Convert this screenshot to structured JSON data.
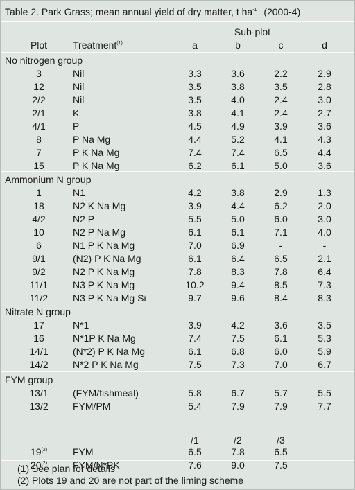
{
  "title": {
    "main": "Table 2. Park Grass; mean annual yield of dry matter, t ha",
    "sup": "-1",
    "years": "(2000-4)"
  },
  "header": {
    "subplot": "Sub-plot",
    "plot": "Plot",
    "treatment": "Treatment",
    "treatment_note": "(1)",
    "cols": [
      "a",
      "b",
      "c",
      "d"
    ]
  },
  "groups": [
    {
      "name": "No nitrogen group",
      "rows": [
        {
          "plot": "3",
          "treatment": "Nil",
          "values": [
            "3.3",
            "3.6",
            "2.2",
            "2.9"
          ]
        },
        {
          "plot": "12",
          "treatment": "Nil",
          "values": [
            "3.5",
            "3.8",
            "3.5",
            "2.8"
          ]
        },
        {
          "plot": "2/2",
          "treatment": "Nil",
          "values": [
            "3.5",
            "4.0",
            "2.4",
            "3.0"
          ]
        },
        {
          "plot": "2/1",
          "treatment": "K",
          "values": [
            "3.8",
            "4.1",
            "2.4",
            "2.7"
          ]
        },
        {
          "plot": "4/1",
          "treatment": "P",
          "values": [
            "4.5",
            "4.9",
            "3.9",
            "3.6"
          ]
        },
        {
          "plot": "8",
          "treatment": "P Na Mg",
          "values": [
            "4.4",
            "5.2",
            "4.1",
            "4.3"
          ]
        },
        {
          "plot": "7",
          "treatment": "P K Na Mg",
          "values": [
            "7.4",
            "7.4",
            "6.5",
            "4.4"
          ]
        },
        {
          "plot": "15",
          "treatment": "P K Na Mg",
          "values": [
            "6.2",
            "6.1",
            "5.0",
            "3.6"
          ]
        }
      ]
    },
    {
      "name": "Ammonium N group",
      "rows": [
        {
          "plot": "1",
          "treatment": "N1",
          "values": [
            "4.2",
            "3.8",
            "2.9",
            "1.3"
          ]
        },
        {
          "plot": "18",
          "treatment": "N2 K Na Mg",
          "values": [
            "3.9",
            "4.4",
            "6.2",
            "2.0"
          ]
        },
        {
          "plot": "4/2",
          "treatment": "N2 P",
          "values": [
            "5.5",
            "5.0",
            "6.0",
            "3.0"
          ]
        },
        {
          "plot": "10",
          "treatment": "N2 P Na Mg",
          "values": [
            "6.1",
            "6.1",
            "7.1",
            "4.0"
          ]
        },
        {
          "plot": "6",
          "treatment": "N1 P K Na Mg",
          "values": [
            "7.0",
            "6.9",
            "-",
            "-"
          ]
        },
        {
          "plot": "9/1",
          "treatment": "(N2) P K Na Mg",
          "values": [
            "6.1",
            "6.4",
            "6.5",
            "2.1"
          ]
        },
        {
          "plot": "9/2",
          "treatment": "N2 P K Na Mg",
          "values": [
            "7.8",
            "8.3",
            "7.8",
            "6.4"
          ]
        },
        {
          "plot": "11/1",
          "treatment": "N3 P K Na Mg",
          "values": [
            "10.2",
            "9.4",
            "8.5",
            "7.3"
          ]
        },
        {
          "plot": "11/2",
          "treatment": "N3 P K Na Mg Si",
          "values": [
            "9.7",
            "9.6",
            "8.4",
            "8.3"
          ]
        }
      ]
    },
    {
      "name": "Nitrate N group",
      "rows": [
        {
          "plot": "17",
          "treatment": "N*1",
          "values": [
            "3.9",
            "4.2",
            "3.6",
            "3.5"
          ]
        },
        {
          "plot": "16",
          "treatment": "N*1P K Na Mg",
          "values": [
            "7.4",
            "7.5",
            "6.1",
            "5.3"
          ]
        },
        {
          "plot": "14/1",
          "treatment": "(N*2) P K Na Mg",
          "values": [
            "6.1",
            "6.8",
            "6.0",
            "5.9"
          ]
        },
        {
          "plot": "14/2",
          "treatment": "N*2 P K Na Mg",
          "values": [
            "7.5",
            "7.3",
            "7.0",
            "6.7"
          ]
        }
      ]
    },
    {
      "name": "FYM group",
      "rows": [
        {
          "plot": "13/1",
          "treatment": "(FYM/fishmeal)",
          "values": [
            "5.8",
            "6.7",
            "5.7",
            "5.5"
          ]
        },
        {
          "plot": "13/2",
          "treatment": "FYM/PM",
          "values": [
            "5.4",
            "7.9",
            "7.9",
            "7.7"
          ]
        }
      ],
      "subheader": [
        "/1",
        "/2",
        "/3"
      ],
      "extra_rows": [
        {
          "plot": "19",
          "note": "(2)",
          "treatment": "FYM",
          "values": [
            "6.5",
            "7.8",
            "6.5"
          ]
        },
        {
          "plot": "20",
          "note": "(2)",
          "treatment": "FYM/N*PK",
          "values": [
            "7.6",
            "9.0",
            "7.5"
          ]
        }
      ]
    }
  ],
  "footnotes": [
    "(1) See plan for details",
    "(2) Plots 19 and 20 are not part of the liming scheme"
  ]
}
